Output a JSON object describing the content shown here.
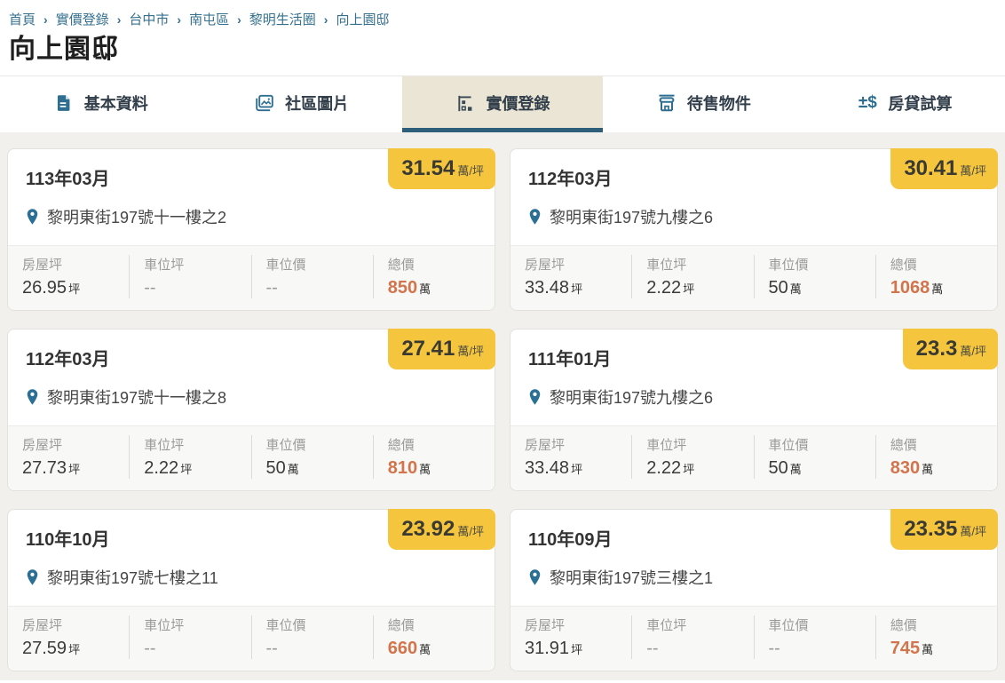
{
  "breadcrumb": {
    "separator": "›",
    "items": [
      "首頁",
      "實價登錄",
      "台中市",
      "南屯區",
      "黎明生活圈",
      "向上園邸"
    ]
  },
  "page_title": "向上園邸",
  "tabs": [
    {
      "name": "tab-basic-info",
      "icon": "document-icon",
      "label": "基本資料",
      "active": false
    },
    {
      "name": "tab-photos",
      "icon": "photos-icon",
      "label": "社區圖片",
      "active": false
    },
    {
      "name": "tab-price-registry",
      "icon": "price-chart-icon",
      "label": "實價登錄",
      "active": true
    },
    {
      "name": "tab-for-sale",
      "icon": "storefront-icon",
      "label": "待售物件",
      "active": false
    },
    {
      "name": "tab-mortgage",
      "icon": "plus-minus-dollar-icon",
      "label": "房貸試算",
      "active": false
    }
  ],
  "listings": [
    {
      "date": "113年03月",
      "unit_price": {
        "value": "31.54",
        "unit": "萬/坪"
      },
      "address": "黎明東街197號十一樓之2",
      "stats": [
        {
          "label": "房屋坪",
          "value": "26.95",
          "unit": "坪",
          "highlight": false
        },
        {
          "label": "車位坪",
          "value": "--",
          "unit": "",
          "highlight": false
        },
        {
          "label": "車位價",
          "value": "--",
          "unit": "",
          "highlight": false
        },
        {
          "label": "總價",
          "value": "850",
          "unit": "萬",
          "highlight": true
        }
      ]
    },
    {
      "date": "112年03月",
      "unit_price": {
        "value": "30.41",
        "unit": "萬/坪"
      },
      "address": "黎明東街197號九樓之6",
      "stats": [
        {
          "label": "房屋坪",
          "value": "33.48",
          "unit": "坪",
          "highlight": false
        },
        {
          "label": "車位坪",
          "value": "2.22",
          "unit": "坪",
          "highlight": false
        },
        {
          "label": "車位價",
          "value": "50",
          "unit": "萬",
          "highlight": false
        },
        {
          "label": "總價",
          "value": "1068",
          "unit": "萬",
          "highlight": true
        }
      ]
    },
    {
      "date": "112年03月",
      "unit_price": {
        "value": "27.41",
        "unit": "萬/坪"
      },
      "address": "黎明東街197號十一樓之8",
      "stats": [
        {
          "label": "房屋坪",
          "value": "27.73",
          "unit": "坪",
          "highlight": false
        },
        {
          "label": "車位坪",
          "value": "2.22",
          "unit": "坪",
          "highlight": false
        },
        {
          "label": "車位價",
          "value": "50",
          "unit": "萬",
          "highlight": false
        },
        {
          "label": "總價",
          "value": "810",
          "unit": "萬",
          "highlight": true
        }
      ]
    },
    {
      "date": "111年01月",
      "unit_price": {
        "value": "23.3",
        "unit": "萬/坪"
      },
      "address": "黎明東街197號九樓之6",
      "stats": [
        {
          "label": "房屋坪",
          "value": "33.48",
          "unit": "坪",
          "highlight": false
        },
        {
          "label": "車位坪",
          "value": "2.22",
          "unit": "坪",
          "highlight": false
        },
        {
          "label": "車位價",
          "value": "50",
          "unit": "萬",
          "highlight": false
        },
        {
          "label": "總價",
          "value": "830",
          "unit": "萬",
          "highlight": true
        }
      ]
    },
    {
      "date": "110年10月",
      "unit_price": {
        "value": "23.92",
        "unit": "萬/坪"
      },
      "address": "黎明東街197號七樓之11",
      "stats": [
        {
          "label": "房屋坪",
          "value": "27.59",
          "unit": "坪",
          "highlight": false
        },
        {
          "label": "車位坪",
          "value": "--",
          "unit": "",
          "highlight": false
        },
        {
          "label": "車位價",
          "value": "--",
          "unit": "",
          "highlight": false
        },
        {
          "label": "總價",
          "value": "660",
          "unit": "萬",
          "highlight": true
        }
      ]
    },
    {
      "date": "110年09月",
      "unit_price": {
        "value": "23.35",
        "unit": "萬/坪"
      },
      "address": "黎明東街197號三樓之1",
      "stats": [
        {
          "label": "房屋坪",
          "value": "31.91",
          "unit": "坪",
          "highlight": false
        },
        {
          "label": "車位坪",
          "value": "--",
          "unit": "",
          "highlight": false
        },
        {
          "label": "車位價",
          "value": "--",
          "unit": "",
          "highlight": false
        },
        {
          "label": "總價",
          "value": "745",
          "unit": "萬",
          "highlight": true
        }
      ]
    }
  ],
  "colors": {
    "breadcrumb_link": "#35708e",
    "tab_active_background": "#eae5d4",
    "tab_active_underline": "#2e5f7a",
    "tab_icon_blue": "#2e6f91",
    "badge_yellow": "#f5c63d",
    "total_price_orange": "#d2744c",
    "content_background": "#f2f0ec"
  }
}
